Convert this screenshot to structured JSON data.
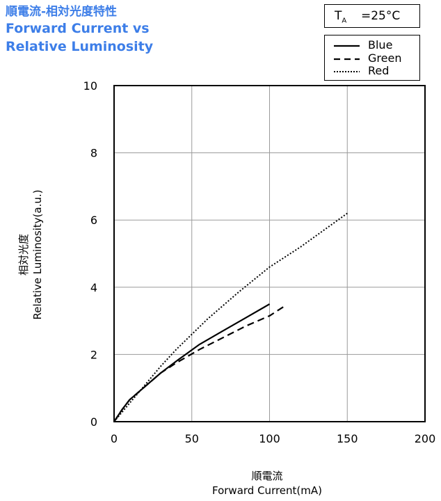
{
  "title": {
    "jp": "順電流-相対光度特性",
    "en_line1": "Forward Current vs",
    "en_line2": "Relative Luminosity"
  },
  "condition": {
    "label_main": "T",
    "label_sub": "A",
    "value": "=25°C"
  },
  "legend": [
    {
      "name": "Blue",
      "style": "solid"
    },
    {
      "name": "Green",
      "style": "dashed"
    },
    {
      "name": "Red",
      "style": "dotted"
    }
  ],
  "axes": {
    "ylabel_jp": "相対光度",
    "ylabel_en": "Relative Luminosity(a.u.)",
    "xlabel_jp": "順電流",
    "xlabel_en": "Forward Current(mA)"
  },
  "chart_data": {
    "type": "line",
    "xlabel": "順電流 Forward Current(mA)",
    "ylabel": "相対光度 Relative Luminosity(a.u.)",
    "xlim": [
      0,
      200
    ],
    "ylim": [
      0,
      10
    ],
    "xticks": [
      0,
      50,
      100,
      150,
      200
    ],
    "yticks": [
      0,
      2,
      4,
      6,
      8,
      10
    ],
    "grid": true,
    "legend_position": "top-right",
    "series": [
      {
        "name": "Blue",
        "style": "solid",
        "x": [
          0,
          5,
          10,
          20,
          30,
          40,
          55,
          70,
          85,
          100
        ],
        "y": [
          0,
          0.35,
          0.65,
          1.05,
          1.45,
          1.8,
          2.3,
          2.7,
          3.1,
          3.5
        ]
      },
      {
        "name": "Green",
        "style": "dashed",
        "x": [
          0,
          5,
          10,
          20,
          30,
          40,
          55,
          70,
          85,
          100,
          110
        ],
        "y": [
          0,
          0.35,
          0.65,
          1.05,
          1.45,
          1.75,
          2.15,
          2.5,
          2.85,
          3.15,
          3.45
        ]
      },
      {
        "name": "Red",
        "style": "dotted",
        "x": [
          0,
          10,
          20,
          30,
          40,
          50,
          60,
          80,
          100,
          120,
          135,
          150
        ],
        "y": [
          0,
          0.55,
          1.1,
          1.65,
          2.15,
          2.6,
          3.05,
          3.85,
          4.6,
          5.2,
          5.7,
          6.2
        ]
      }
    ]
  }
}
